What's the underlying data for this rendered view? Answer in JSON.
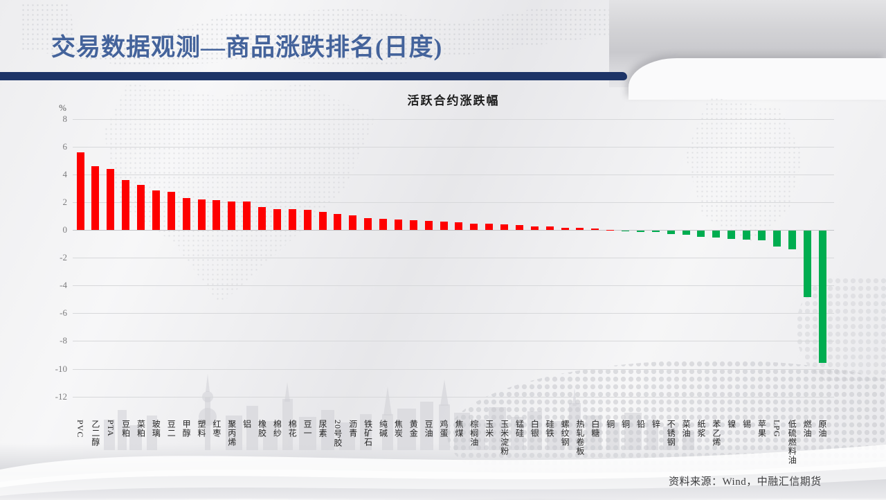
{
  "page": {
    "title": "交易数据观测—商品涨跌排名(日度)",
    "source": "资料来源：Wind，中融汇信期货"
  },
  "chart_data": {
    "type": "bar",
    "title": "活跃合约涨跌幅",
    "unit_label": "%",
    "ylabel": "%",
    "ylim": [
      -12,
      8
    ],
    "yticks": [
      8,
      6,
      4,
      2,
      0,
      -2,
      -4,
      -6,
      -8,
      -10,
      -12
    ],
    "grid": true,
    "legend": "none",
    "positive_color": "#FE0000",
    "negative_color": "#00AD50",
    "categories": [
      "PVC",
      "乙二醇",
      "PTA",
      "豆粕",
      "菜粕",
      "玻璃",
      "豆二",
      "甲醇",
      "塑料",
      "红枣",
      "聚丙烯",
      "铝",
      "橡胶",
      "棉纱",
      "棉花",
      "豆一",
      "尿素",
      "20号胶",
      "沥青",
      "铁矿石",
      "纯碱",
      "焦炭",
      "黄金",
      "豆油",
      "鸡蛋",
      "焦煤",
      "棕榈油",
      "玉米",
      "玉米淀粉",
      "锰硅",
      "白银",
      "硅铁",
      "螺纹钢",
      "热轧卷板",
      "白糖",
      "铜",
      "铜",
      "铅",
      "锌",
      "不锈钢",
      "菜油",
      "纸浆",
      "苯乙烯",
      "镍",
      "锡",
      "苹果",
      "LPG",
      "低硫燃料油",
      "燃油",
      "原油"
    ],
    "values": [
      5.6,
      4.58,
      4.38,
      3.58,
      3.22,
      2.85,
      2.75,
      2.28,
      2.2,
      2.12,
      2.06,
      2.02,
      1.67,
      1.5,
      1.48,
      1.45,
      1.3,
      1.14,
      1.05,
      0.86,
      0.8,
      0.74,
      0.71,
      0.66,
      0.62,
      0.56,
      0.47,
      0.43,
      0.4,
      0.33,
      0.27,
      0.23,
      0.17,
      0.14,
      0.12,
      0.01,
      -0.01,
      -0.08,
      -0.1,
      -0.23,
      -0.3,
      -0.43,
      -0.5,
      -0.58,
      -0.64,
      -0.7,
      -1.15,
      -1.35,
      -4.8,
      -9.53
    ]
  }
}
